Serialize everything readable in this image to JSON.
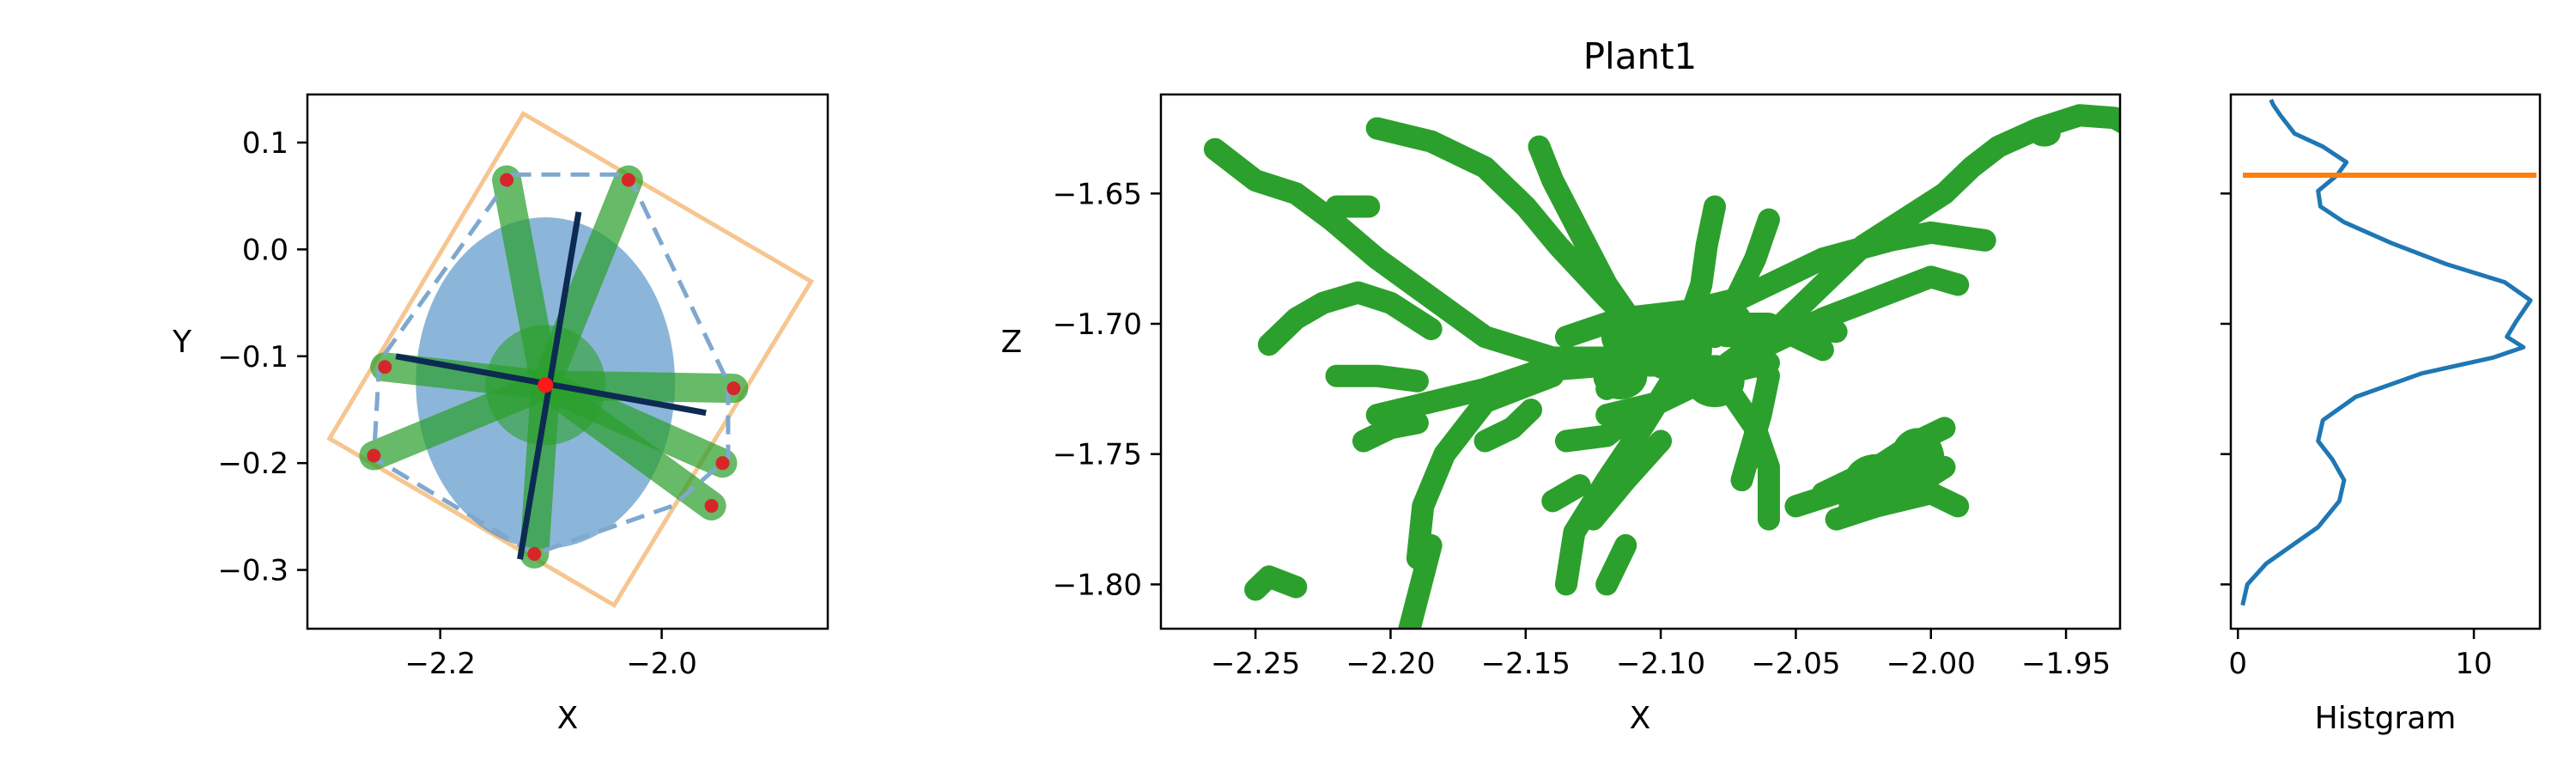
{
  "figure": {
    "title": "Plant1"
  },
  "chart_data": [
    {
      "panel": "top-view",
      "type": "scatter",
      "xlabel": "X",
      "ylabel": "Y",
      "xlim": [
        -2.32,
        -1.85
      ],
      "ylim": [
        -0.355,
        0.145
      ],
      "xticks": [
        -2.2,
        -2.0
      ],
      "xtick_labels": [
        "−2.2",
        "−2.0"
      ],
      "yticks": [
        0.1,
        0.0,
        -0.1,
        -0.2,
        -0.3
      ],
      "ytick_labels": [
        "0.1",
        "0.0",
        "−0.1",
        "−0.2",
        "−0.3"
      ],
      "grid": false,
      "ellipse": {
        "center": [
          -2.105,
          -0.125
        ],
        "semi_axis_x": 0.117,
        "semi_axis_y": 0.155,
        "color": "#4f8fc4"
      },
      "oriented_box": {
        "color": "#f5c085",
        "corners": [
          [
            -2.125,
            0.127
          ],
          [
            -1.865,
            -0.03
          ],
          [
            -2.043,
            -0.333
          ],
          [
            -2.3,
            -0.177
          ]
        ]
      },
      "convex_hull": {
        "color": "#7fa8cf",
        "dashed": true,
        "points": [
          [
            -2.135,
            0.07
          ],
          [
            -2.03,
            0.07
          ],
          [
            -1.94,
            -0.125
          ],
          [
            -1.94,
            -0.195
          ],
          [
            -1.99,
            -0.24
          ],
          [
            -2.115,
            -0.285
          ],
          [
            -2.26,
            -0.195
          ],
          [
            -2.255,
            -0.105
          ]
        ]
      },
      "principal_axes": [
        {
          "from": [
            -2.075,
            0.035
          ],
          "to": [
            -2.128,
            -0.29
          ]
        },
        {
          "from": [
            -2.24,
            -0.1
          ],
          "to": [
            -1.96,
            -0.153
          ]
        }
      ],
      "centroid": [
        -2.105,
        -0.127
      ],
      "tip_points": [
        [
          -2.14,
          0.065
        ],
        [
          -2.03,
          0.065
        ],
        [
          -2.25,
          -0.11
        ],
        [
          -1.935,
          -0.13
        ],
        [
          -1.945,
          -0.2
        ],
        [
          -1.955,
          -0.24
        ],
        [
          -2.115,
          -0.285
        ],
        [
          -2.26,
          -0.193
        ]
      ],
      "leaves_color": "#2ca02c"
    },
    {
      "panel": "side-view",
      "type": "scatter",
      "title": "Plant1",
      "xlabel": "X",
      "ylabel": "Z",
      "xlim": [
        -2.285,
        -1.93
      ],
      "ylim": [
        -1.817,
        -1.612
      ],
      "xticks": [
        -2.25,
        -2.2,
        -2.15,
        -2.1,
        -2.05,
        -2.0,
        -1.95
      ],
      "xtick_labels": [
        "−2.25",
        "−2.20",
        "−2.15",
        "−2.10",
        "−2.05",
        "−2.00",
        "−1.95"
      ],
      "yticks": [
        -1.65,
        -1.7,
        -1.75,
        -1.8
      ],
      "ytick_labels": [
        "−1.65",
        "−1.70",
        "−1.75",
        "−1.80"
      ],
      "grid": false,
      "color": "#2ca02c",
      "strands": [
        [
          [
            -2.265,
            -1.633
          ],
          [
            -2.25,
            -1.645
          ],
          [
            -2.235,
            -1.65
          ],
          [
            -2.222,
            -1.66
          ],
          [
            -2.205,
            -1.675
          ],
          [
            -2.185,
            -1.69
          ],
          [
            -2.165,
            -1.705
          ],
          [
            -2.14,
            -1.713
          ],
          [
            -2.115,
            -1.713
          ]
        ],
        [
          [
            -2.245,
            -1.708
          ],
          [
            -2.235,
            -1.698
          ],
          [
            -2.225,
            -1.692
          ],
          [
            -2.212,
            -1.688
          ],
          [
            -2.2,
            -1.692
          ],
          [
            -2.185,
            -1.702
          ]
        ],
        [
          [
            -2.22,
            -1.655
          ],
          [
            -2.208,
            -1.655
          ]
        ],
        [
          [
            -2.25,
            -1.802
          ],
          [
            -2.245,
            -1.797
          ],
          [
            -2.235,
            -1.801
          ]
        ],
        [
          [
            -2.205,
            -1.625
          ],
          [
            -2.185,
            -1.63
          ],
          [
            -2.165,
            -1.64
          ],
          [
            -2.15,
            -1.655
          ],
          [
            -2.138,
            -1.67
          ],
          [
            -2.12,
            -1.69
          ],
          [
            -2.105,
            -1.705
          ]
        ],
        [
          [
            -2.145,
            -1.632
          ],
          [
            -2.14,
            -1.645
          ],
          [
            -2.13,
            -1.665
          ],
          [
            -2.12,
            -1.685
          ],
          [
            -2.11,
            -1.7
          ]
        ],
        [
          [
            -2.08,
            -1.655
          ],
          [
            -2.083,
            -1.67
          ],
          [
            -2.085,
            -1.685
          ],
          [
            -2.09,
            -1.7
          ],
          [
            -2.095,
            -1.71
          ]
        ],
        [
          [
            -2.06,
            -1.66
          ],
          [
            -2.065,
            -1.675
          ],
          [
            -2.072,
            -1.69
          ],
          [
            -2.08,
            -1.705
          ]
        ],
        [
          [
            -2.205,
            -1.735
          ],
          [
            -2.185,
            -1.73
          ],
          [
            -2.165,
            -1.725
          ],
          [
            -2.145,
            -1.718
          ],
          [
            -2.12,
            -1.716
          ],
          [
            -2.1,
            -1.716
          ]
        ],
        [
          [
            -2.21,
            -1.745
          ],
          [
            -2.2,
            -1.74
          ],
          [
            -2.19,
            -1.738
          ]
        ],
        [
          [
            -2.22,
            -1.72
          ],
          [
            -2.205,
            -1.72
          ],
          [
            -2.19,
            -1.722
          ]
        ],
        [
          [
            -2.19,
            -1.79
          ],
          [
            -2.188,
            -1.77
          ],
          [
            -2.18,
            -1.75
          ],
          [
            -2.165,
            -1.73
          ],
          [
            -2.14,
            -1.72
          ]
        ],
        [
          [
            -2.195,
            -1.825
          ],
          [
            -2.19,
            -1.805
          ],
          [
            -2.185,
            -1.785
          ]
        ],
        [
          [
            -2.165,
            -1.745
          ],
          [
            -2.155,
            -1.74
          ],
          [
            -2.148,
            -1.733
          ]
        ],
        [
          [
            -2.135,
            -1.8
          ],
          [
            -2.132,
            -1.78
          ],
          [
            -2.12,
            -1.76
          ],
          [
            -2.107,
            -1.74
          ],
          [
            -2.095,
            -1.72
          ]
        ],
        [
          [
            -2.125,
            -1.775
          ],
          [
            -2.113,
            -1.76
          ],
          [
            -2.1,
            -1.745
          ]
        ],
        [
          [
            -2.135,
            -1.745
          ],
          [
            -2.12,
            -1.743
          ],
          [
            -2.11,
            -1.735
          ]
        ],
        [
          [
            -2.14,
            -1.768
          ],
          [
            -2.13,
            -1.762
          ]
        ],
        [
          [
            -2.12,
            -1.8
          ],
          [
            -2.113,
            -1.785
          ]
        ],
        [
          [
            -2.06,
            -1.775
          ],
          [
            -2.06,
            -1.755
          ],
          [
            -2.065,
            -1.74
          ],
          [
            -2.075,
            -1.725
          ],
          [
            -2.085,
            -1.715
          ]
        ],
        [
          [
            -2.05,
            -1.77
          ],
          [
            -2.035,
            -1.765
          ],
          [
            -2.02,
            -1.763
          ],
          [
            -2.005,
            -1.76
          ]
        ],
        [
          [
            -2.04,
            -1.765
          ],
          [
            -2.02,
            -1.755
          ],
          [
            -2.005,
            -1.745
          ],
          [
            -1.995,
            -1.74
          ]
        ],
        [
          [
            -2.035,
            -1.775
          ],
          [
            -2.02,
            -1.77
          ],
          [
            -2.0,
            -1.765
          ],
          [
            -1.99,
            -1.77
          ]
        ],
        [
          [
            -2.07,
            -1.76
          ],
          [
            -2.063,
            -1.735
          ],
          [
            -2.06,
            -1.72
          ],
          [
            -2.07,
            -1.705
          ]
        ],
        [
          [
            -2.03,
            -1.77
          ],
          [
            -2.01,
            -1.765
          ],
          [
            -1.995,
            -1.755
          ]
        ],
        [
          [
            -2.08,
            -1.72
          ],
          [
            -2.06,
            -1.708
          ],
          [
            -2.04,
            -1.698
          ],
          [
            -2.02,
            -1.69
          ],
          [
            -2.0,
            -1.682
          ],
          [
            -1.99,
            -1.685
          ]
        ],
        [
          [
            -2.08,
            -1.695
          ],
          [
            -2.06,
            -1.685
          ],
          [
            -2.04,
            -1.675
          ],
          [
            -2.015,
            -1.668
          ],
          [
            -2.0,
            -1.665
          ],
          [
            -1.98,
            -1.668
          ]
        ],
        [
          [
            -2.07,
            -1.705
          ],
          [
            -2.05,
            -1.702
          ],
          [
            -2.035,
            -1.703
          ]
        ],
        [
          [
            -2.075,
            -1.715
          ],
          [
            -2.055,
            -1.7
          ],
          [
            -2.04,
            -1.685
          ],
          [
            -2.025,
            -1.67
          ],
          [
            -2.01,
            -1.66
          ],
          [
            -1.995,
            -1.65
          ],
          [
            -1.985,
            -1.64
          ],
          [
            -1.975,
            -1.632
          ],
          [
            -1.96,
            -1.625
          ],
          [
            -1.945,
            -1.62
          ],
          [
            -1.932,
            -1.621
          ],
          [
            -1.925,
            -1.625
          ]
        ],
        [
          [
            -2.12,
            -1.725
          ],
          [
            -2.1,
            -1.71
          ],
          [
            -2.08,
            -1.7
          ],
          [
            -2.06,
            -1.7
          ],
          [
            -2.04,
            -1.71
          ]
        ],
        [
          [
            -2.135,
            -1.705
          ],
          [
            -2.115,
            -1.698
          ],
          [
            -2.09,
            -1.695
          ],
          [
            -2.07,
            -1.69
          ]
        ],
        [
          [
            -2.12,
            -1.735
          ],
          [
            -2.1,
            -1.73
          ],
          [
            -2.08,
            -1.72
          ],
          [
            -2.06,
            -1.715
          ]
        ]
      ],
      "blobs": [
        [
          -2.095,
          -1.71,
          0.014,
          0.012
        ],
        [
          -2.11,
          -1.705,
          0.012,
          0.01
        ],
        [
          -2.08,
          -1.722,
          0.011,
          0.01
        ],
        [
          -2.115,
          -1.72,
          0.01,
          0.009
        ],
        [
          -2.075,
          -1.7,
          0.009,
          0.009
        ],
        [
          -2.02,
          -1.76,
          0.012,
          0.01
        ],
        [
          -2.005,
          -1.752,
          0.01,
          0.012
        ],
        [
          -1.958,
          -1.627,
          0.006,
          0.005
        ]
      ]
    },
    {
      "panel": "histogram",
      "type": "line",
      "xlabel": "Histgram",
      "xlim": [
        -0.3,
        12.8
      ],
      "xticks": [
        0,
        10
      ],
      "xtick_labels": [
        "0",
        "10"
      ],
      "yticks": [
        -1.65,
        -1.7,
        -1.75,
        -1.8
      ],
      "ylim": [
        -1.817,
        -1.612
      ],
      "series": [
        {
          "color": "#1f77b4",
          "points": [
            [
              0.2,
              -1.808
            ],
            [
              0.4,
              -1.8
            ],
            [
              1.2,
              -1.792
            ],
            [
              2.3,
              -1.785
            ],
            [
              3.4,
              -1.778
            ],
            [
              4.3,
              -1.768
            ],
            [
              4.5,
              -1.76
            ],
            [
              4.0,
              -1.752
            ],
            [
              3.4,
              -1.745
            ],
            [
              3.6,
              -1.737
            ],
            [
              5.0,
              -1.728
            ],
            [
              7.8,
              -1.719
            ],
            [
              10.8,
              -1.713
            ],
            [
              12.1,
              -1.709
            ],
            [
              11.4,
              -1.705
            ],
            [
              11.8,
              -1.699
            ],
            [
              12.4,
              -1.691
            ],
            [
              11.3,
              -1.684
            ],
            [
              8.8,
              -1.677
            ],
            [
              6.5,
              -1.669
            ],
            [
              4.5,
              -1.661
            ],
            [
              3.5,
              -1.655
            ],
            [
              3.4,
              -1.649
            ],
            [
              4.2,
              -1.643
            ],
            [
              4.6,
              -1.638
            ],
            [
              3.6,
              -1.632
            ],
            [
              2.4,
              -1.627
            ],
            [
              1.8,
              -1.62
            ],
            [
              1.5,
              -1.616
            ],
            [
              1.4,
              -1.614
            ]
          ]
        }
      ],
      "reference_line": {
        "orientation": "horizontal",
        "y": -1.643,
        "color": "#ff7f0e"
      }
    }
  ]
}
